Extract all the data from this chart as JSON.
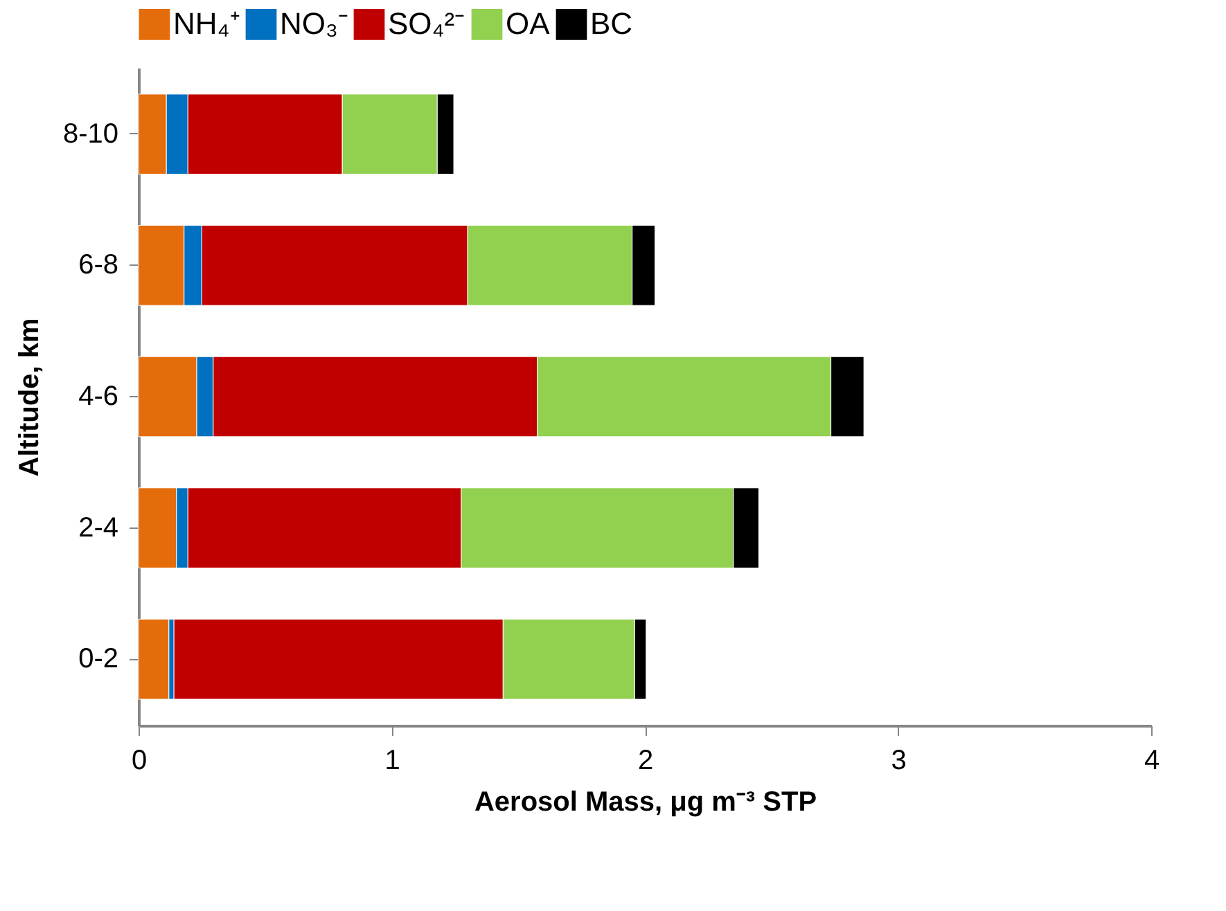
{
  "chart_data": {
    "type": "bar",
    "orientation": "horizontal",
    "stacked": true,
    "xlabel": "Aerosol Mass, μg m⁻³ STP",
    "ylabel": "Altitude, km",
    "categories": [
      "8-10",
      "6-8",
      "4-6",
      "2-4",
      "0-2"
    ],
    "series": [
      {
        "name": "NH₄⁺",
        "color": "#e46c0a",
        "values": [
          0.11,
          0.18,
          0.23,
          0.15,
          0.12
        ]
      },
      {
        "name": "NO₃⁻",
        "color": "#0070c0",
        "values": [
          0.085,
          0.07,
          0.065,
          0.045,
          0.02
        ]
      },
      {
        "name": "SO₄²⁻",
        "color": "#c00000",
        "values": [
          0.61,
          1.05,
          1.28,
          1.08,
          1.3
        ]
      },
      {
        "name": "OA",
        "color": "#92d050",
        "values": [
          0.375,
          0.65,
          1.16,
          1.075,
          0.52
        ]
      },
      {
        "name": "BC",
        "color": "#000000",
        "values": [
          0.065,
          0.09,
          0.13,
          0.1,
          0.045
        ]
      }
    ],
    "xlim": [
      0,
      4
    ],
    "xticks": [
      0,
      1,
      2,
      3,
      4
    ],
    "grid": false,
    "legend": "top"
  }
}
